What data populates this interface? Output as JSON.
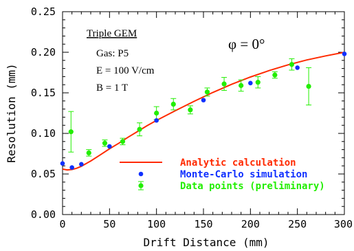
{
  "chart_data": {
    "type": "scatter",
    "title": "",
    "xlabel": "Drift Distance (mm)",
    "ylabel": "Resolution (mm)",
    "xlim": [
      0,
      300
    ],
    "ylim": [
      0,
      0.25
    ],
    "x_ticks": [
      "0",
      "50",
      "100",
      "150",
      "200",
      "250",
      "300"
    ],
    "y_ticks": [
      "0.00",
      "0.05",
      "0.10",
      "0.15",
      "0.20",
      "0.25"
    ],
    "grid": false,
    "legend_position": "bottom-right",
    "annotations": {
      "title_box": "Triple GEM",
      "lines": [
        "Gas: P5",
        "E = 100 V/cm",
        "B = 1 T"
      ],
      "angle": "φ = 0°"
    },
    "series": [
      {
        "name": "Analytic calculation",
        "kind": "line",
        "color": "#ff2a00",
        "x": [
          0,
          5,
          10,
          15,
          20,
          30,
          40,
          50,
          60,
          70,
          80,
          90,
          100,
          120,
          140,
          160,
          180,
          200,
          220,
          240,
          260,
          280,
          300
        ],
        "y": [
          0.056,
          0.055,
          0.0555,
          0.057,
          0.0595,
          0.066,
          0.0735,
          0.081,
          0.088,
          0.0955,
          0.1025,
          0.1095,
          0.116,
          0.128,
          0.1395,
          0.1505,
          0.1605,
          0.1695,
          0.1775,
          0.1845,
          0.1905,
          0.1955,
          0.2
        ]
      },
      {
        "name": "Monte-Carlo simulation",
        "kind": "points",
        "color": "#1030ff",
        "x": [
          0,
          10,
          20,
          50,
          100,
          150,
          200,
          250,
          300
        ],
        "y": [
          0.063,
          0.058,
          0.062,
          0.084,
          0.116,
          0.141,
          0.162,
          0.181,
          0.198
        ]
      },
      {
        "name": "Data points (preliminary)",
        "kind": "errorbar",
        "color": "#22ee00",
        "x": [
          9,
          28,
          45,
          64,
          82,
          100,
          118,
          136,
          154,
          172,
          190,
          208,
          226,
          244,
          262
        ],
        "y": [
          0.102,
          0.076,
          0.088,
          0.09,
          0.105,
          0.125,
          0.136,
          0.129,
          0.151,
          0.161,
          0.159,
          0.163,
          0.172,
          0.185,
          0.158
        ],
        "err": [
          0.025,
          0.004,
          0.004,
          0.004,
          0.008,
          0.008,
          0.007,
          0.005,
          0.005,
          0.008,
          0.007,
          0.007,
          0.004,
          0.007,
          0.023
        ]
      }
    ]
  }
}
